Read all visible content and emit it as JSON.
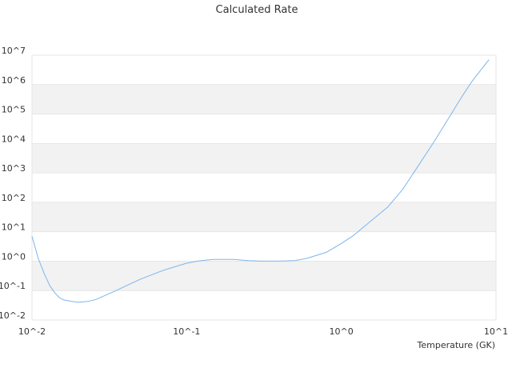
{
  "chart_data": {
    "type": "line",
    "title": "Calculated Rate",
    "xlabel": "Temperature (GK)",
    "ylabel": "",
    "x_scale": "log",
    "y_scale": "log",
    "xlim": [
      0.01,
      10
    ],
    "ylim": [
      0.01,
      10000000
    ],
    "x_tick_labels": [
      "10^-2",
      "10^-1",
      "10^0",
      "10^1"
    ],
    "y_tick_labels": [
      "10^-2",
      "10^-1",
      "10^0",
      "10^1",
      "10^2",
      "10^3",
      "10^4",
      "10^5",
      "10^6",
      "10^7"
    ],
    "grid": true,
    "legend": "none",
    "colors": {
      "line": "#7cb5ec",
      "band": "#f2f2f2",
      "gridline": "#e6e6e6",
      "text": "#333333"
    },
    "series": [
      {
        "x": [
          0.01,
          0.011,
          0.012,
          0.013,
          0.014,
          0.015,
          0.016,
          0.018,
          0.02,
          0.023,
          0.026,
          0.03,
          0.035,
          0.04,
          0.05,
          0.06,
          0.07,
          0.08,
          0.1,
          0.12,
          0.15,
          0.2,
          0.25,
          0.3,
          0.4,
          0.5,
          0.6,
          0.8,
          1.0,
          1.2,
          1.5,
          2.0,
          2.5,
          3.0,
          4.0,
          5.0,
          6.0,
          7.0,
          8.0,
          9.0
        ],
        "y": [
          7,
          1.2,
          0.38,
          0.15,
          0.085,
          0.058,
          0.048,
          0.043,
          0.04,
          0.043,
          0.05,
          0.07,
          0.1,
          0.14,
          0.24,
          0.35,
          0.48,
          0.6,
          0.85,
          1.02,
          1.15,
          1.15,
          1.05,
          1.0,
          1.0,
          1.05,
          1.25,
          2.0,
          4.0,
          7.5,
          20,
          70,
          280,
          1200,
          12000,
          80000,
          380000,
          1300000,
          3200000,
          7000000
        ]
      }
    ]
  }
}
